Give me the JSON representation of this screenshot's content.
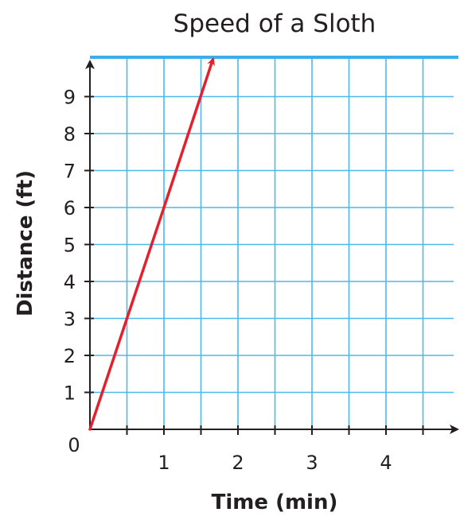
{
  "chart_data": {
    "type": "line",
    "title": "Speed of a Sloth",
    "xlabel": "Time (min)",
    "ylabel": "Distance (ft)",
    "origin_label": "0",
    "xlim": [
      0,
      5
    ],
    "ylim": [
      0,
      10
    ],
    "x_ticks": [
      1,
      2,
      3,
      4
    ],
    "y_ticks": [
      1,
      2,
      3,
      4,
      5,
      6,
      7,
      8,
      9
    ],
    "grid": true,
    "series": [
      {
        "x": [
          0,
          1,
          1.66
        ],
        "y": [
          0,
          6,
          10
        ],
        "color": "#e5202e",
        "arrow_end": true
      }
    ],
    "colors": {
      "grid": "#4db8ec",
      "axis": "#231f20",
      "line": "#e5202e"
    }
  }
}
